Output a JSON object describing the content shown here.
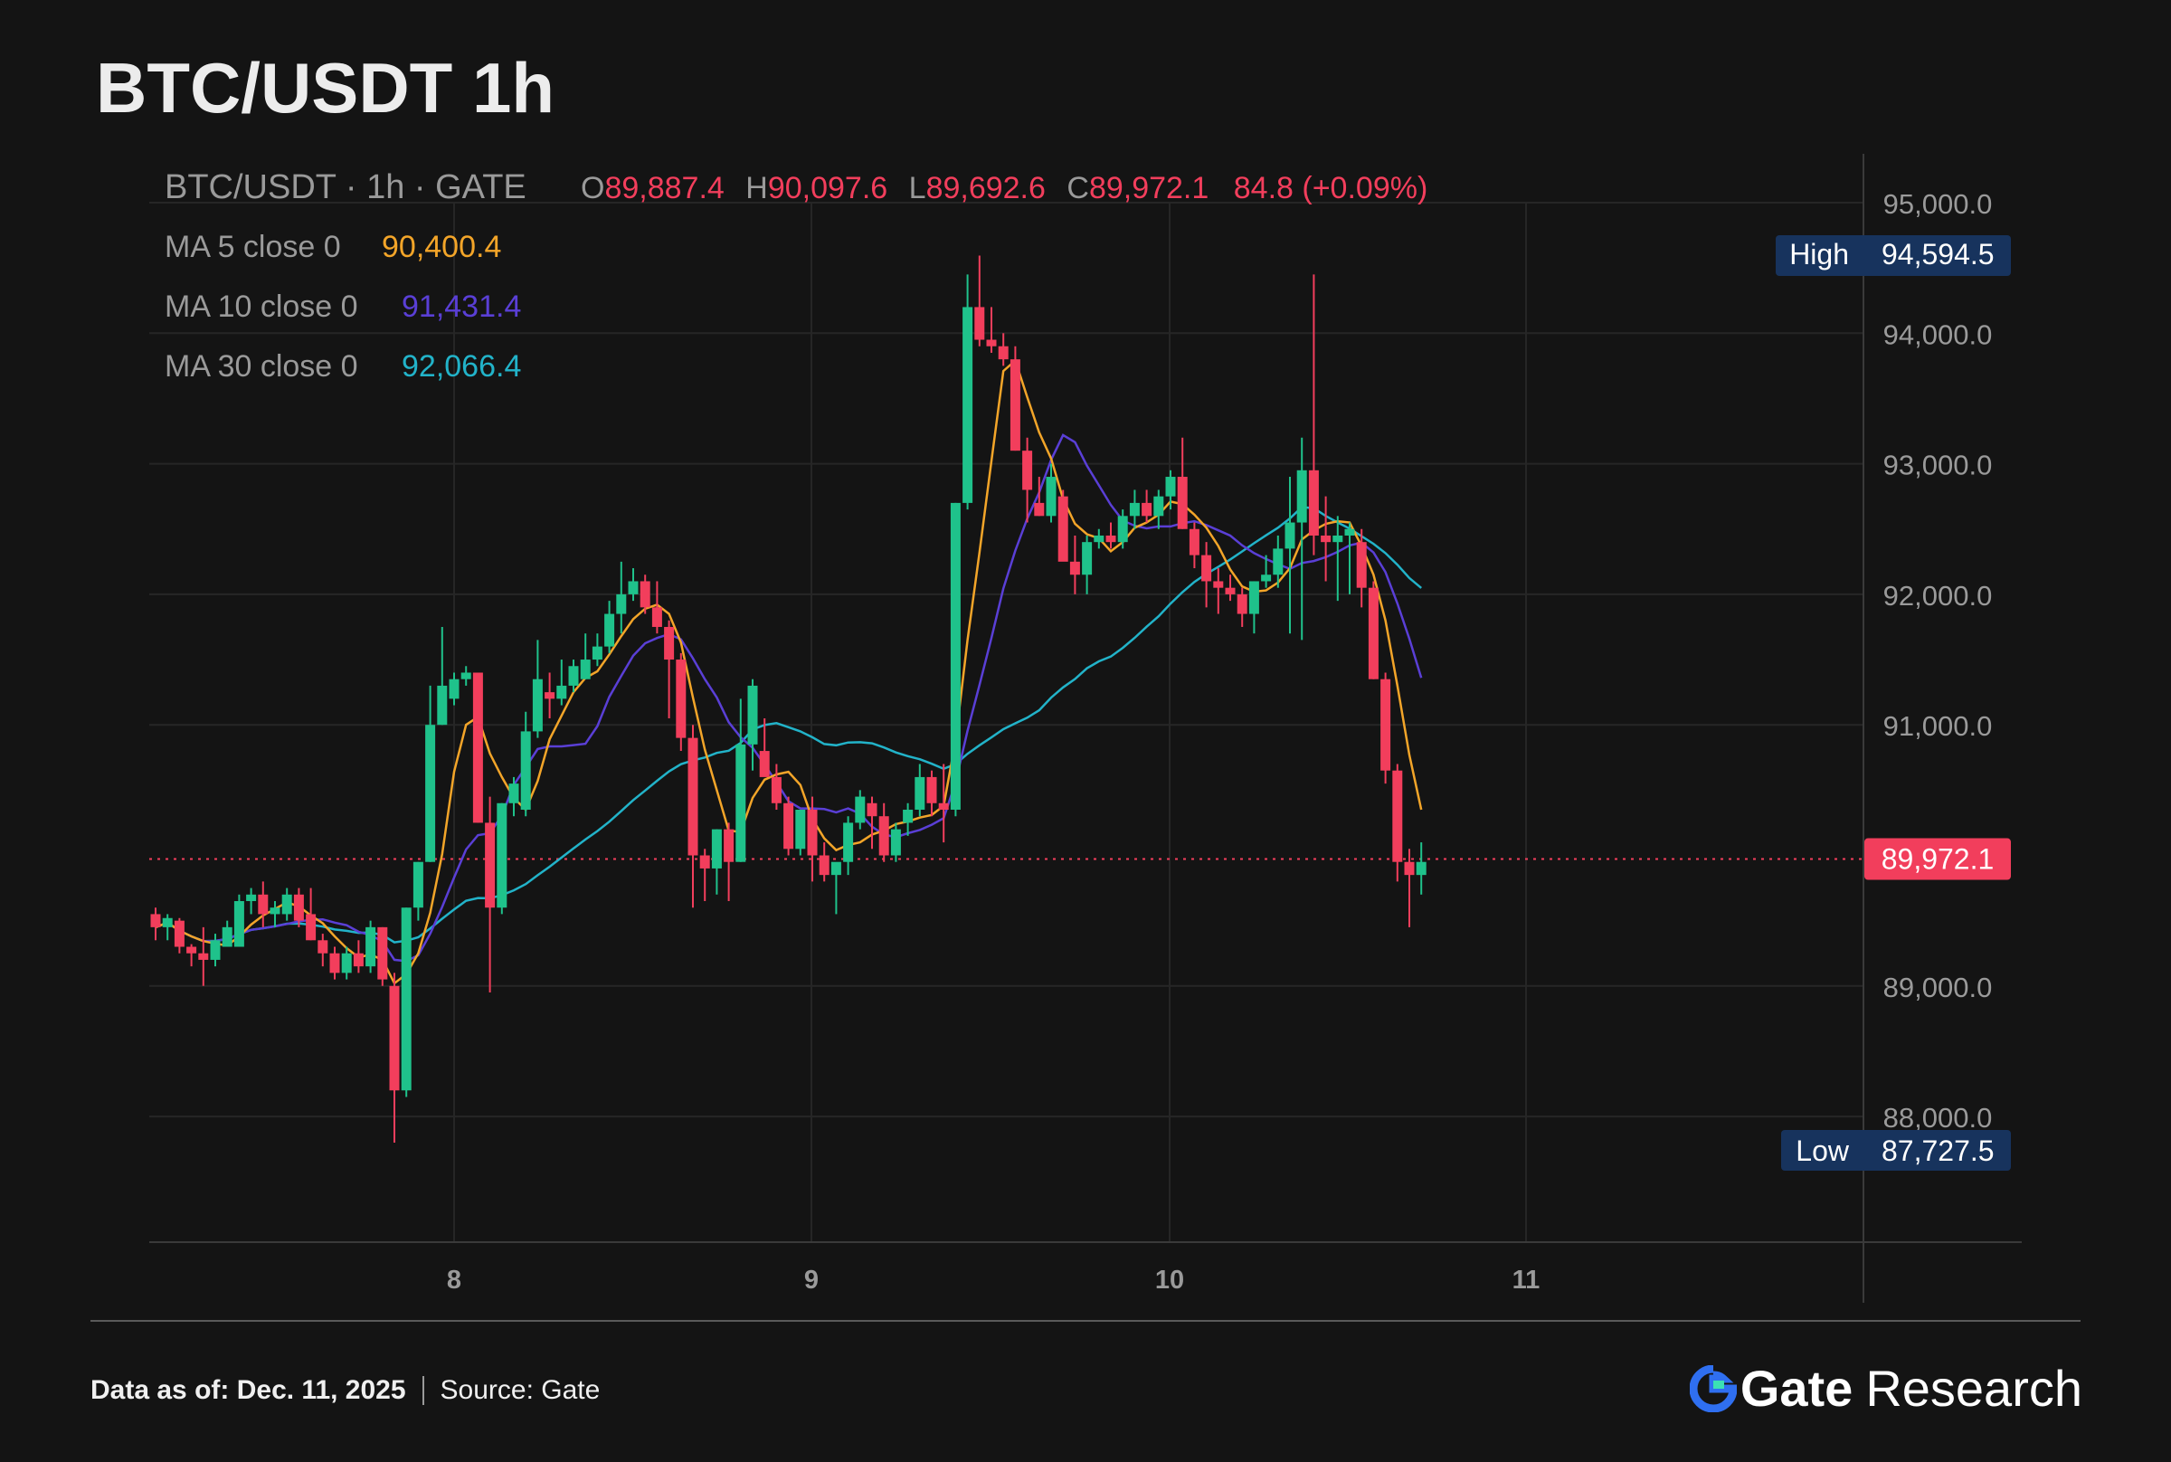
{
  "title": "BTC/USDT 1h",
  "legend": {
    "symbol": "BTC/USDT · 1h · GATE",
    "o_label": "O",
    "o": "89,887.4",
    "h_label": "H",
    "h": "90,097.6",
    "l_label": "L",
    "l": "89,692.6",
    "c_label": "C",
    "c": "89,972.1",
    "change": "84.8 (+0.09%)",
    "ma5_label": "MA 5 close 0",
    "ma5_value": "90,400.4",
    "ma10_label": "MA 10 close 0",
    "ma10_value": "91,431.4",
    "ma30_label": "MA 30 close 0",
    "ma30_value": "92,066.4"
  },
  "badges": {
    "high_label": "High",
    "high_value": "94,594.5",
    "low_label": "Low",
    "low_value": "87,727.5",
    "last_value": "89,972.1"
  },
  "footer": {
    "data_as_of_label": "Data as of:",
    "data_as_of_value": "Dec. 11, 2025",
    "source_label": "Source:",
    "source_value": "Gate"
  },
  "brand": {
    "name": "Gate",
    "suffix": "Research"
  },
  "colors": {
    "up": "#1fc28b",
    "down": "#f23e5c",
    "ma5": "#f3a529",
    "ma10": "#5a3fd6",
    "ma30": "#22b3c9",
    "badge_bg": "#17335d",
    "grid": "#262626",
    "text_muted": "#9a9a9a",
    "brand_blue": "#2f6ff0"
  },
  "chart_data": {
    "type": "candlestick",
    "title": "BTC/USDT 1h",
    "x_ticks": [
      "8",
      "9",
      "10",
      "11"
    ],
    "y_ticks": [
      "95,000.0",
      "94,000.0",
      "93,000.0",
      "92,000.0",
      "91,000.0",
      "89,000.0",
      "88,000.0"
    ],
    "ylim": [
      87000,
      95400
    ],
    "last_close": 89972.1,
    "high": 94594.5,
    "low": 87727.5,
    "series_ohlc": [
      [
        89550,
        89600,
        89350,
        89450
      ],
      [
        89450,
        89550,
        89350,
        89520
      ],
      [
        89500,
        89520,
        89250,
        89300
      ],
      [
        89300,
        89320,
        89150,
        89250
      ],
      [
        89250,
        89450,
        89000,
        89200
      ],
      [
        89200,
        89400,
        89150,
        89350
      ],
      [
        89300,
        89500,
        89300,
        89450
      ],
      [
        89300,
        89700,
        89300,
        89650
      ],
      [
        89650,
        89750,
        89550,
        89700
      ],
      [
        89700,
        89800,
        89450,
        89550
      ],
      [
        89550,
        89650,
        89450,
        89600
      ],
      [
        89550,
        89750,
        89500,
        89700
      ],
      [
        89700,
        89750,
        89450,
        89500
      ],
      [
        89550,
        89750,
        89350,
        89350
      ],
      [
        89350,
        89400,
        89150,
        89250
      ],
      [
        89250,
        89300,
        89050,
        89100
      ],
      [
        89100,
        89300,
        89050,
        89250
      ],
      [
        89250,
        89350,
        89100,
        89150
      ],
      [
        89150,
        89500,
        89100,
        89450
      ],
      [
        89450,
        89450,
        89000,
        89050
      ],
      [
        89000,
        89100,
        87800,
        88200
      ],
      [
        88200,
        89600,
        88150,
        89600
      ],
      [
        89600,
        89950,
        89500,
        89950
      ],
      [
        89950,
        91300,
        89950,
        91000
      ],
      [
        91000,
        91750,
        91000,
        91300
      ],
      [
        91200,
        91400,
        91150,
        91350
      ],
      [
        91350,
        91450,
        91300,
        91400
      ],
      [
        91400,
        91400,
        90250,
        90250
      ],
      [
        90250,
        90450,
        88950,
        89600
      ],
      [
        89600,
        90400,
        89550,
        90400
      ],
      [
        90400,
        90600,
        90300,
        90550
      ],
      [
        90350,
        91100,
        90300,
        90950
      ],
      [
        90950,
        91650,
        90900,
        91350
      ],
      [
        91250,
        91400,
        91050,
        91200
      ],
      [
        91200,
        91500,
        91150,
        91300
      ],
      [
        91300,
        91500,
        91250,
        91450
      ],
      [
        91350,
        91700,
        91350,
        91500
      ],
      [
        91500,
        91700,
        91450,
        91600
      ],
      [
        91600,
        91950,
        91550,
        91850
      ],
      [
        91850,
        92250,
        91700,
        92000
      ],
      [
        92000,
        92200,
        91950,
        92100
      ],
      [
        92100,
        92150,
        91850,
        91900
      ],
      [
        91900,
        92100,
        91700,
        91750
      ],
      [
        91750,
        91800,
        91050,
        91500
      ],
      [
        91500,
        91550,
        90800,
        90900
      ],
      [
        90900,
        91000,
        89600,
        90000
      ],
      [
        90000,
        90050,
        89650,
        89900
      ],
      [
        89900,
        90200,
        89700,
        90200
      ],
      [
        90200,
        90250,
        89650,
        89950
      ],
      [
        89950,
        91200,
        89950,
        90850
      ],
      [
        90850,
        91350,
        90650,
        91300
      ],
      [
        90800,
        91050,
        90650,
        90600
      ],
      [
        90600,
        90700,
        90350,
        90400
      ],
      [
        90400,
        90450,
        90000,
        90050
      ],
      [
        90050,
        90350,
        90000,
        90350
      ],
      [
        90350,
        90450,
        89800,
        90000
      ],
      [
        90000,
        90100,
        89800,
        89850
      ],
      [
        89850,
        89900,
        89550,
        89950
      ],
      [
        89950,
        90300,
        89850,
        90250
      ],
      [
        90250,
        90500,
        90200,
        90450
      ],
      [
        90400,
        90450,
        90050,
        90300
      ],
      [
        90300,
        90400,
        89950,
        90000
      ],
      [
        90000,
        90250,
        89950,
        90200
      ],
      [
        90250,
        90400,
        90150,
        90350
      ],
      [
        90350,
        90700,
        90300,
        90600
      ],
      [
        90600,
        90650,
        90300,
        90400
      ],
      [
        90400,
        90700,
        90100,
        90350
      ],
      [
        90350,
        92700,
        90300,
        92700
      ],
      [
        92700,
        94450,
        92650,
        94200
      ],
      [
        94200,
        94594.5,
        93900,
        93950
      ],
      [
        93950,
        94200,
        93850,
        93900
      ],
      [
        93900,
        94000,
        93750,
        93800
      ],
      [
        93800,
        93900,
        93100,
        93100
      ],
      [
        93100,
        93200,
        92550,
        92800
      ],
      [
        92700,
        92900,
        92600,
        92600
      ],
      [
        92600,
        93000,
        92550,
        92900
      ],
      [
        92750,
        92800,
        92300,
        92250
      ],
      [
        92250,
        92450,
        92000,
        92150
      ],
      [
        92150,
        92450,
        92000,
        92400
      ],
      [
        92400,
        92500,
        92350,
        92450
      ],
      [
        92450,
        92550,
        92350,
        92400
      ],
      [
        92400,
        92650,
        92350,
        92600
      ],
      [
        92600,
        92800,
        92500,
        92700
      ],
      [
        92700,
        92800,
        92550,
        92600
      ],
      [
        92600,
        92800,
        92500,
        92750
      ],
      [
        92750,
        92950,
        92650,
        92900
      ],
      [
        92900,
        93200,
        92500,
        92500
      ],
      [
        92500,
        92550,
        92200,
        92300
      ],
      [
        92300,
        92400,
        91900,
        92100
      ],
      [
        92100,
        92200,
        91850,
        92050
      ],
      [
        92050,
        92150,
        91950,
        92000
      ],
      [
        92000,
        92050,
        91750,
        91850
      ],
      [
        91850,
        92100,
        91700,
        92100
      ],
      [
        92100,
        92300,
        92050,
        92150
      ],
      [
        92150,
        92450,
        92050,
        92350
      ],
      [
        92350,
        92900,
        91700,
        92550
      ],
      [
        92550,
        93200,
        91650,
        92950
      ],
      [
        92950,
        94450,
        92300,
        92450
      ],
      [
        92450,
        92750,
        92100,
        92400
      ],
      [
        92400,
        92600,
        91950,
        92450
      ],
      [
        92450,
        92550,
        92000,
        92500
      ],
      [
        92400,
        92500,
        91900,
        92050
      ],
      [
        92050,
        92100,
        91350,
        91350
      ],
      [
        91350,
        91400,
        90550,
        90650
      ],
      [
        90650,
        90700,
        89800,
        89950
      ],
      [
        89950,
        90050,
        89450,
        89850
      ],
      [
        89850,
        90100,
        89700,
        89950
      ]
    ],
    "series_ma": [
      {
        "name": "MA 5 close 0",
        "color": "#f3a529",
        "value": "90,400.4"
      },
      {
        "name": "MA 10 close 0",
        "color": "#5a3fd6",
        "value": "91,431.4"
      },
      {
        "name": "MA 30 close 0",
        "color": "#22b3c9",
        "value": "92,066.4"
      }
    ]
  }
}
